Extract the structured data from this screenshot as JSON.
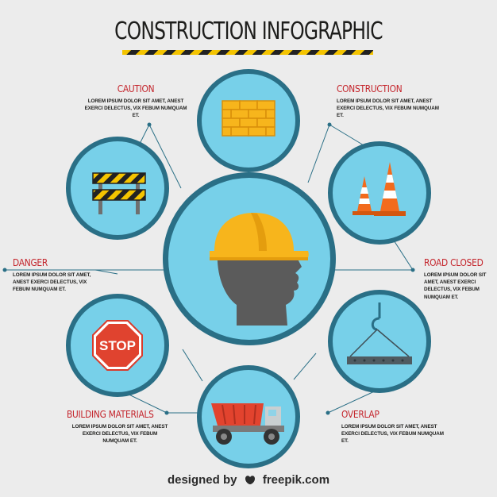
{
  "title": "CONSTRUCTION INFOGRAPHIC",
  "stop_sign_text": "STOP",
  "colors": {
    "circle_fill": "#77d0e9",
    "circle_border": "#2a6f86",
    "heading": "#c4242b",
    "background": "#ececec",
    "hazard_yellow": "#f4c400"
  },
  "sections": {
    "caution": {
      "heading": "CAUTION",
      "body": "LOREM IPSUM DOLOR SIT AMET, ANEST EXERCI DELECTUS, VIX FEBUM NUMQUAM ET."
    },
    "construction": {
      "heading": "CONSTRUCTION",
      "body": "LOREM IPSUM DOLOR SIT AMET, ANEST EXERCI DELECTUS, VIX FEBUM NUMQUAM ET."
    },
    "danger": {
      "heading": "DANGER",
      "body": "LOREM IPSUM DOLOR SIT AMET, ANEST EXERCI DELECTUS, VIX FEBUM NUMQUAM ET."
    },
    "road_closed": {
      "heading": "ROAD CLOSED",
      "body": "LOREM IPSUM DOLOR SIT AMET, ANEST EXERCI DELECTUS, VIX FEBUM NUMQUAM ET."
    },
    "building_materials": {
      "heading": "BUILDING MATERIALS",
      "body": "LOREM IPSUM DOLOR SIT AMET, ANEST EXERCI DELECTUS, VIX FEBUM NUMQUAM ET."
    },
    "overlap": {
      "heading": "OVERLAP",
      "body": "LOREM IPSUM DOLOR SIT AMET, ANEST EXERCI DELECTUS, VIX FEBUM NUMQUAM ET."
    }
  },
  "credit": {
    "prefix": "designed by",
    "brand": "freepik.com"
  },
  "icons": [
    "hard-hat-head-icon",
    "brick-wall-icon",
    "traffic-cones-icon",
    "hanging-beam-icon",
    "dump-truck-icon",
    "stop-sign-icon",
    "barricade-icon"
  ]
}
